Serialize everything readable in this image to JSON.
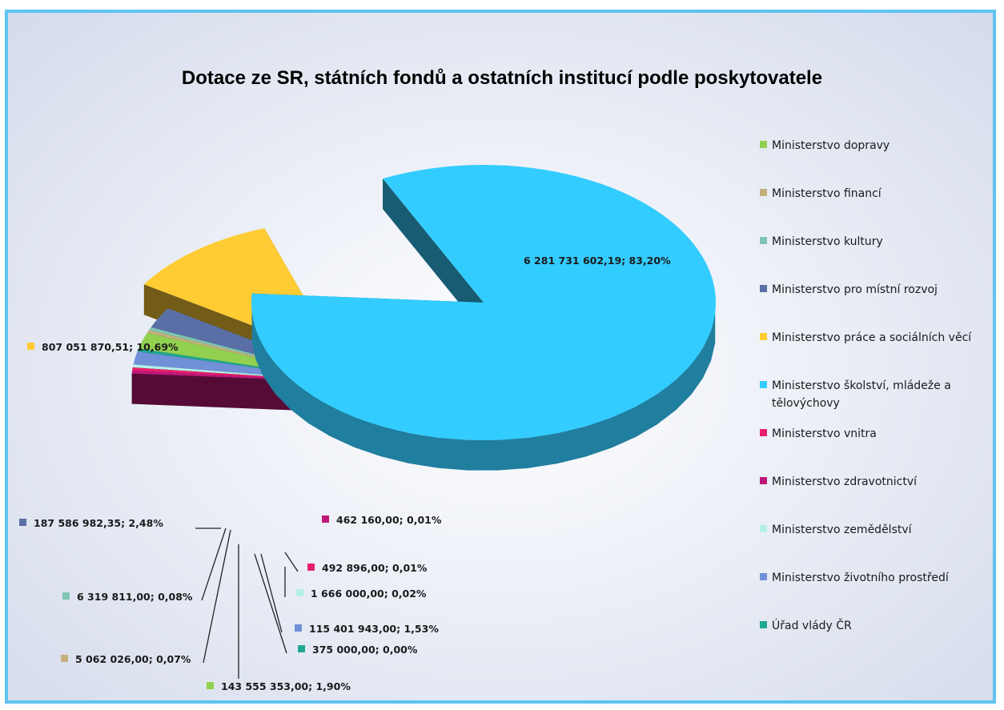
{
  "chart_data": {
    "type": "pie",
    "title": "Dotace ze SR, státních fondů a ostatních institucí podle poskytovatele",
    "legend_position": "right",
    "slices": [
      {
        "name": "Ministerstvo dopravy",
        "value": 143555353.0,
        "label": "143 555 353,00; 1,90%",
        "color": "#92d050"
      },
      {
        "name": "Ministerstvo financí",
        "value": 5062026.0,
        "label": "5 062 026,00; 0,07%",
        "color": "#c4b07c"
      },
      {
        "name": "Ministerstvo kultury",
        "value": 6319811.0,
        "label": "6 319 811,00; 0,08%",
        "color": "#7fc6b2"
      },
      {
        "name": "Ministerstvo pro místní rozvoj",
        "value": 187586982.35,
        "label": "187 586 982,35; 2,48%",
        "color": "#5a6fa6"
      },
      {
        "name": "Ministerstvo práce a sociálních věcí",
        "value": 807051870.51,
        "label": "807 051 870,51; 10,69%",
        "color": "#ffcc33"
      },
      {
        "name": "Ministerstvo školství, mládeže a tělovýchovy",
        "value": 6281731602.19,
        "label": "6 281 731 602,19; 83,20%",
        "color": "#33ccff"
      },
      {
        "name": "Ministerstvo vnitra",
        "value": 492896.0,
        "label": "492 896,00; 0,01%",
        "color": "#e8206a"
      },
      {
        "name": "Ministerstvo zdravotnictví",
        "value": 462160.0,
        "label": "462 160,00; 0,01%",
        "color": "#c0187a"
      },
      {
        "name": "Ministerstvo zemědělství",
        "value": 1666000.0,
        "label": "1 666 000,00; 0,02%",
        "color": "#b4f0e8"
      },
      {
        "name": "Ministerstvo životního prostředí",
        "value": 115401943.0,
        "label": "115 401 943,00; 1,53%",
        "color": "#7090d8"
      },
      {
        "name": "Úřad vlády ČR",
        "value": 375000.0,
        "label": "375 000,00; 0,00%",
        "color": "#20a890"
      }
    ]
  }
}
